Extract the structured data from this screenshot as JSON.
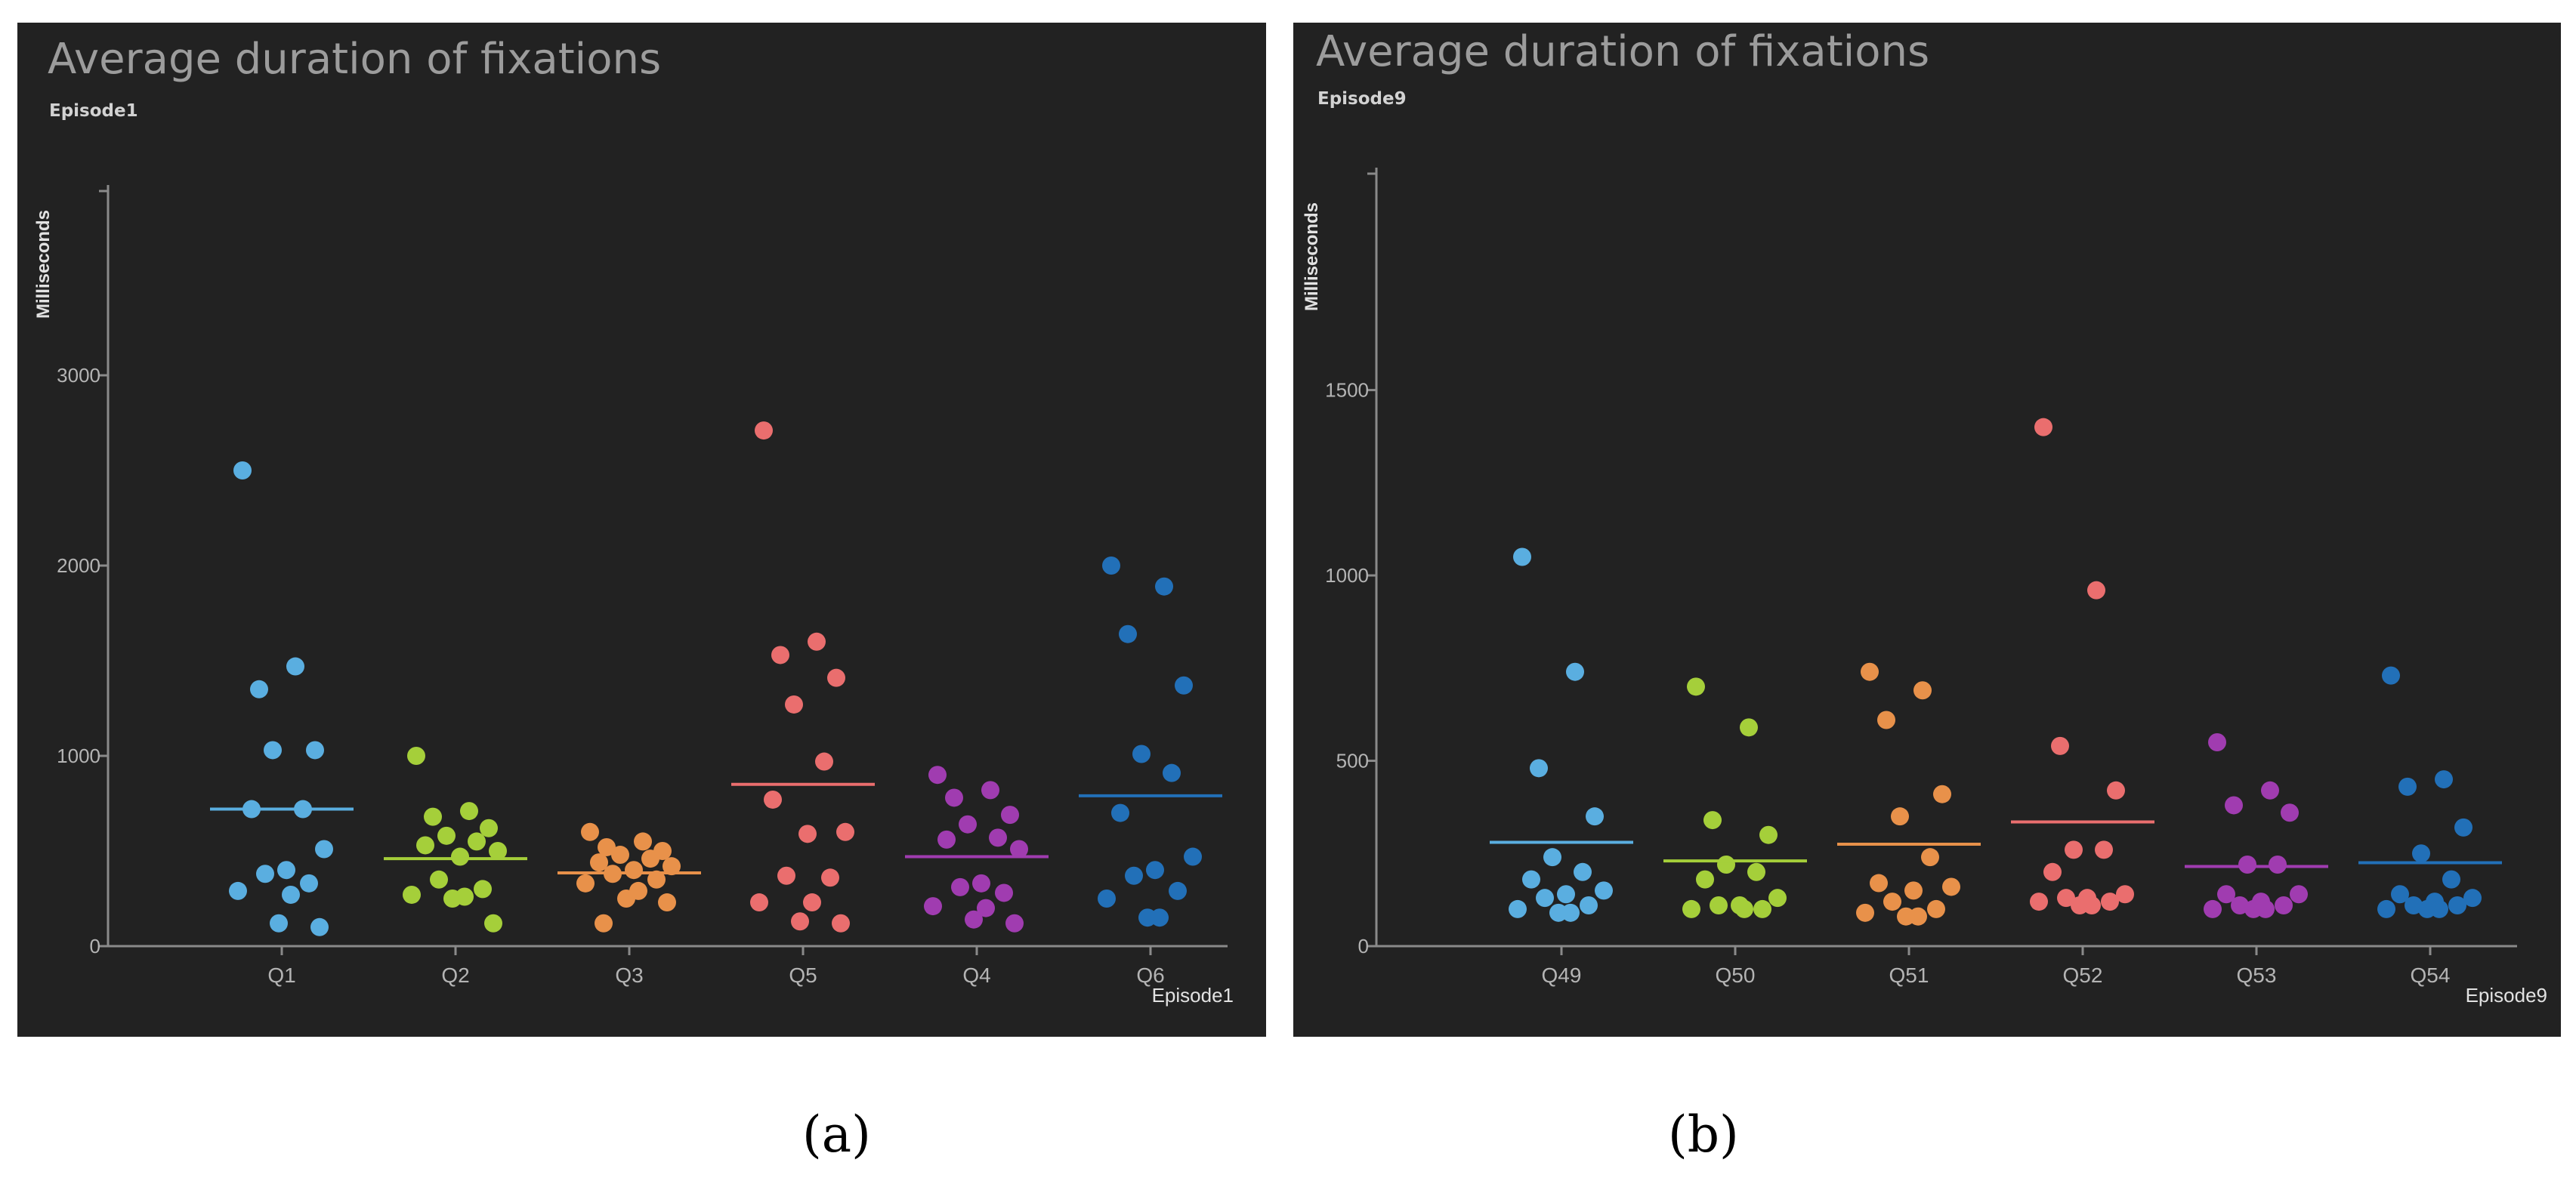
{
  "chart_data": [
    {
      "type": "scatter",
      "panel_id": "a",
      "title": "Average duration of fixations",
      "subtitle": "Episode1",
      "ylabel": "Milliseconds",
      "xlabel": "Episode1",
      "ylim": [
        0,
        4000
      ],
      "yticks": [
        0,
        1000,
        2000,
        3000
      ],
      "categories": [
        "Q1",
        "Q2",
        "Q3",
        "Q5",
        "Q4",
        "Q6"
      ],
      "colors": [
        "#5aaee0",
        "#a5cf3a",
        "#e8914a",
        "#ea6e6e",
        "#a03cb0",
        "#2270b8"
      ],
      "series": [
        {
          "category": "Q1",
          "mean": 720,
          "values": [
            2500,
            1470,
            1350,
            1030,
            1030,
            720,
            720,
            510,
            400,
            380,
            330,
            290,
            270,
            120,
            100
          ]
        },
        {
          "category": "Q2",
          "mean": 460,
          "values": [
            1000,
            710,
            680,
            620,
            580,
            550,
            530,
            500,
            470,
            350,
            300,
            270,
            260,
            250,
            120
          ]
        },
        {
          "category": "Q3",
          "mean": 385,
          "values": [
            600,
            550,
            520,
            500,
            480,
            460,
            440,
            420,
            400,
            380,
            350,
            330,
            290,
            250,
            230,
            120
          ]
        },
        {
          "category": "Q5",
          "mean": 850,
          "values": [
            2710,
            1600,
            1530,
            1410,
            1270,
            970,
            770,
            600,
            590,
            370,
            360,
            230,
            230,
            130,
            120
          ]
        },
        {
          "category": "Q4",
          "mean": 470,
          "values": [
            900,
            820,
            780,
            690,
            640,
            570,
            560,
            510,
            330,
            310,
            280,
            210,
            200,
            140,
            120
          ]
        },
        {
          "category": "Q6",
          "mean": 790,
          "values": [
            2000,
            1890,
            1640,
            1370,
            1010,
            910,
            700,
            470,
            400,
            370,
            290,
            250,
            150,
            150
          ]
        }
      ]
    },
    {
      "type": "scatter",
      "panel_id": "b",
      "title": "Average duration of fixations",
      "subtitle": "Episode9",
      "ylabel": "Milliseconds",
      "xlabel": "Episode9",
      "ylim": [
        0,
        2100
      ],
      "yticks": [
        0,
        500,
        1000,
        1500
      ],
      "categories": [
        "Q49",
        "Q50",
        "Q51",
        "Q52",
        "Q53",
        "Q54"
      ],
      "colors": [
        "#5aaee0",
        "#a5cf3a",
        "#e8914a",
        "#ea6e6e",
        "#a03cb0",
        "#2270b8"
      ],
      "series": [
        {
          "category": "Q49",
          "mean": 280,
          "values": [
            1050,
            740,
            480,
            350,
            240,
            200,
            180,
            150,
            140,
            130,
            110,
            100,
            90,
            90
          ]
        },
        {
          "category": "Q50",
          "mean": 230,
          "values": [
            700,
            590,
            340,
            300,
            220,
            200,
            180,
            130,
            110,
            110,
            100,
            100,
            100
          ]
        },
        {
          "category": "Q51",
          "mean": 275,
          "values": [
            740,
            690,
            610,
            410,
            350,
            240,
            170,
            160,
            150,
            120,
            100,
            90,
            80,
            80
          ]
        },
        {
          "category": "Q52",
          "mean": 335,
          "values": [
            1400,
            960,
            540,
            420,
            260,
            260,
            200,
            140,
            130,
            130,
            120,
            120,
            110,
            110
          ]
        },
        {
          "category": "Q53",
          "mean": 215,
          "values": [
            550,
            420,
            380,
            360,
            220,
            220,
            140,
            140,
            120,
            110,
            110,
            100,
            100,
            100
          ]
        },
        {
          "category": "Q54",
          "mean": 225,
          "values": [
            730,
            450,
            430,
            320,
            250,
            180,
            140,
            130,
            120,
            110,
            110,
            100,
            100,
            100
          ]
        }
      ]
    }
  ],
  "captions": [
    "(a)",
    "(b)"
  ]
}
